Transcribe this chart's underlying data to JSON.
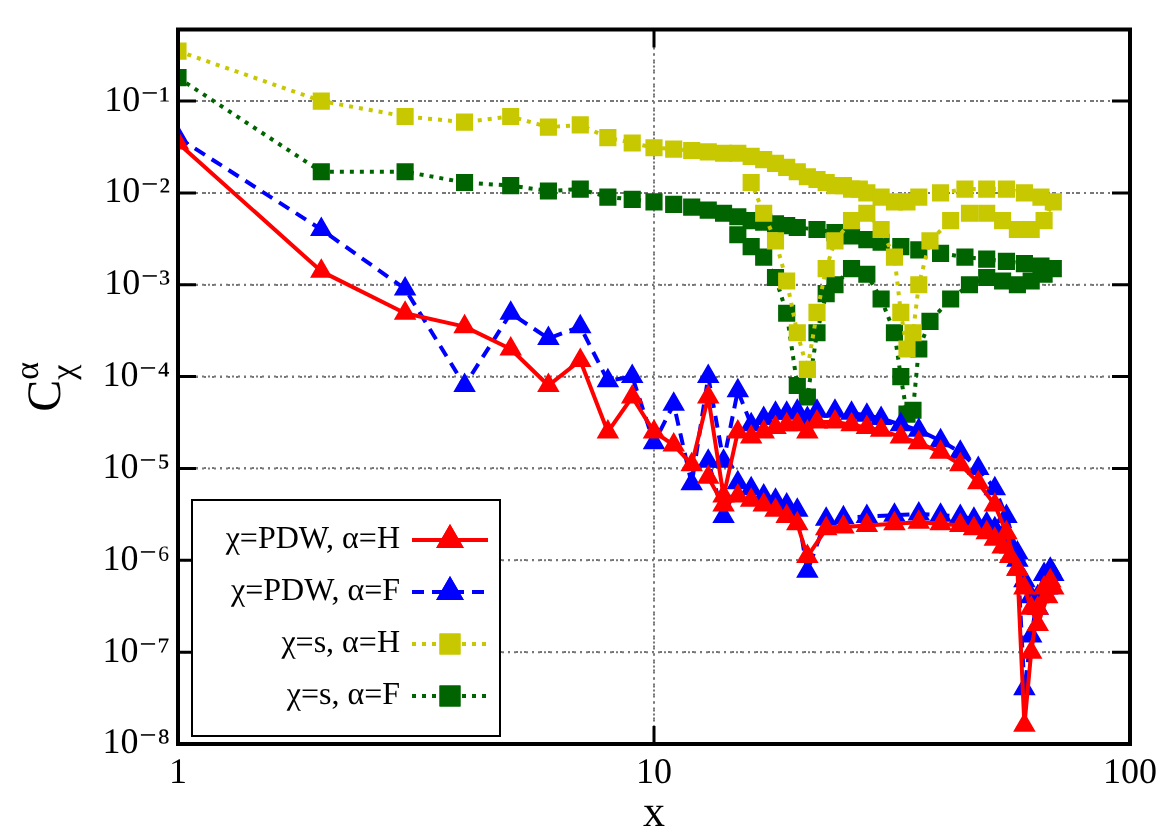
{
  "chart_data": {
    "type": "line",
    "xlabel": "x",
    "ylabel": "C$^{α}$$_{χ}$",
    "log": "xy",
    "grid": true,
    "legend": "bottom left",
    "xlim": [
      1,
      100
    ],
    "xticks": [
      1,
      10,
      100
    ],
    "ylim": [
      1e-08,
      0.6
    ],
    "yticks": [
      {
        "value": 1e-08,
        "label": "10⁻⁸"
      },
      {
        "value": 1e-07,
        "label": "10⁻⁷"
      },
      {
        "value": 1e-06,
        "label": "10⁻⁶"
      },
      {
        "value": 1e-05,
        "label": "10⁻⁵"
      },
      {
        "value": 0.0001,
        "label": "10⁻⁴"
      },
      {
        "value": 0.001,
        "label": "10⁻³"
      },
      {
        "value": 0.01,
        "label": "10⁻²"
      },
      {
        "value": 0.1,
        "label": "10⁻¹"
      }
    ],
    "series": [
      {
        "name": "χ=PDW, α=H",
        "color": "#ff0000",
        "marker": "triangle",
        "line_style": "solid",
        "x": [
          1,
          2,
          3,
          4,
          5,
          6,
          7,
          8,
          9,
          10,
          11,
          12,
          13,
          14,
          15,
          16,
          17,
          18,
          19,
          20,
          21,
          22,
          24,
          26,
          28,
          30,
          33,
          36,
          40,
          44,
          48,
          52,
          55,
          58,
          60,
          62,
          64,
          66,
          68,
          69,
          67,
          64,
          62,
          60,
          58,
          56,
          54,
          52,
          50,
          47,
          44,
          40,
          36,
          32,
          28,
          25,
          23,
          21,
          20,
          19,
          18,
          17,
          16,
          15,
          14,
          13
        ],
        "values": [
          0.035,
          0.0014,
          0.00049,
          0.00035,
          0.0002,
          8e-05,
          0.00015,
          2.5e-05,
          6e-05,
          2.5e-05,
          1.8e-05,
          1.1e-05,
          6e-05,
          5e-06,
          2.5e-05,
          2.2e-05,
          2.5e-05,
          2.8e-05,
          3e-05,
          3e-05,
          2.5e-05,
          3.2e-05,
          3.2e-05,
          3e-05,
          2.8e-05,
          2.6e-05,
          2.2e-05,
          1.9e-05,
          1.5e-05,
          1.1e-05,
          7e-06,
          4e-06,
          2e-06,
          8e-07,
          1.6e-08,
          1e-07,
          3e-07,
          5e-07,
          6e-07,
          5e-07,
          4e-07,
          2e-07,
          3e-07,
          5e-07,
          8e-07,
          1.1e-06,
          1.4e-06,
          1.7e-06,
          2e-06,
          2.2e-06,
          2.4e-06,
          2.5e-06,
          2.6e-06,
          2.5e-06,
          2.4e-06,
          2.3e-06,
          2.2e-06,
          1.1e-06,
          2.5e-06,
          3e-06,
          3.5e-06,
          4e-06,
          4.5e-06,
          5e-06,
          4e-06,
          8e-06
        ]
      },
      {
        "name": "χ=PDW, α=F",
        "color": "#0000ff",
        "marker": "triangle",
        "line_style": "dashed",
        "x": [
          1,
          2,
          3,
          4,
          5,
          6,
          7,
          8,
          9,
          10,
          11,
          12,
          13,
          14,
          15,
          16,
          17,
          18,
          19,
          20,
          21,
          22,
          24,
          26,
          28,
          30,
          33,
          36,
          40,
          44,
          48,
          52,
          55,
          58,
          60,
          62,
          64,
          66,
          68,
          69,
          67,
          64,
          62,
          60,
          58,
          56,
          54,
          52,
          50,
          47,
          44,
          40,
          36,
          32,
          28,
          25,
          23,
          21,
          20,
          19,
          18,
          17,
          16,
          15,
          14,
          13
        ],
        "values": [
          0.04,
          0.004,
          0.0009,
          8e-05,
          0.00049,
          0.00026,
          0.00035,
          9e-05,
          0.0001,
          1.9e-05,
          5e-05,
          6.8e-06,
          0.0001,
          1.2e-05,
          7e-05,
          3e-05,
          3.5e-05,
          4e-05,
          4e-05,
          4.2e-05,
          3.5e-05,
          4.2e-05,
          4.2e-05,
          4e-05,
          3.8e-05,
          3.5e-05,
          3e-05,
          2.6e-05,
          2e-05,
          1.5e-05,
          1e-05,
          6e-06,
          3e-06,
          1.2e-06,
          4e-08,
          1.5e-07,
          4e-07,
          7e-07,
          8e-07,
          7e-07,
          5e-07,
          3e-07,
          4e-07,
          6e-07,
          1e-06,
          1.4e-06,
          1.8e-06,
          2.2e-06,
          2.5e-06,
          2.8e-06,
          3e-06,
          3.1e-06,
          3.2e-06,
          3.1e-06,
          3e-06,
          2.9e-06,
          2.8e-06,
          7.6e-07,
          3.5e-06,
          4e-06,
          4.5e-06,
          5e-06,
          6e-06,
          7e-06,
          3e-06,
          1.2e-05
        ]
      },
      {
        "name": "χ=s, α=H",
        "color": "#c8c800",
        "marker": "square",
        "line_style": "dotted",
        "x": [
          1,
          2,
          3,
          4,
          5,
          6,
          7,
          8,
          9,
          10,
          11,
          12,
          13,
          14,
          15,
          16,
          17,
          18,
          19,
          20,
          21,
          22,
          23,
          24,
          25,
          26,
          27,
          28,
          30,
          32,
          34,
          36,
          40,
          45,
          50,
          55,
          60,
          65,
          69,
          66,
          62,
          58,
          54,
          50,
          46,
          42,
          38,
          36,
          35,
          34,
          33,
          32,
          30,
          28,
          26,
          24,
          23,
          22,
          21,
          20,
          19,
          18,
          17,
          16
        ],
        "values": [
          0.35,
          0.1,
          0.068,
          0.059,
          0.068,
          0.052,
          0.055,
          0.04,
          0.035,
          0.031,
          0.03,
          0.029,
          0.028,
          0.027,
          0.027,
          0.025,
          0.023,
          0.021,
          0.019,
          0.017,
          0.015,
          0.014,
          0.013,
          0.012,
          0.012,
          0.011,
          0.011,
          0.01,
          0.009,
          0.008,
          0.008,
          0.009,
          0.01,
          0.011,
          0.011,
          0.011,
          0.01,
          0.009,
          0.008,
          0.005,
          0.004,
          0.004,
          0.005,
          0.006,
          0.006,
          0.005,
          0.003,
          0.001,
          0.0003,
          0.0002,
          0.0005,
          0.002,
          0.004,
          0.006,
          0.005,
          0.003,
          0.0015,
          0.0005,
          0.00012,
          0.0003,
          0.0011,
          0.003,
          0.006,
          0.013
        ]
      },
      {
        "name": "χ=s, α=F",
        "color": "#006400",
        "marker": "square",
        "line_style": "dotted",
        "x": [
          1,
          2,
          3,
          4,
          5,
          6,
          7,
          8,
          9,
          10,
          11,
          12,
          13,
          14,
          15,
          16,
          17,
          18,
          19,
          20,
          22,
          24,
          26,
          28,
          30,
          33,
          36,
          40,
          45,
          50,
          55,
          60,
          65,
          69,
          66,
          62,
          58,
          54,
          50,
          46,
          42,
          38,
          36,
          35,
          34,
          33,
          32,
          30,
          28,
          26,
          24,
          23,
          22,
          21,
          20,
          19,
          18,
          17,
          16,
          15
        ],
        "values": [
          0.18,
          0.017,
          0.017,
          0.013,
          0.012,
          0.0105,
          0.011,
          0.009,
          0.0085,
          0.008,
          0.0075,
          0.007,
          0.0065,
          0.006,
          0.0055,
          0.005,
          0.0048,
          0.0046,
          0.0044,
          0.0042,
          0.004,
          0.0037,
          0.0034,
          0.0031,
          0.0029,
          0.0026,
          0.0024,
          0.0022,
          0.002,
          0.0019,
          0.0018,
          0.0017,
          0.0016,
          0.0015,
          0.0013,
          0.0011,
          0.001,
          0.0011,
          0.0012,
          0.001,
          0.0007,
          0.0004,
          0.0002,
          4.3e-05,
          3.9e-05,
          0.0001,
          0.0003,
          0.0007,
          0.0013,
          0.0015,
          0.001,
          0.0008,
          0.0003,
          6e-05,
          8e-05,
          0.00049,
          0.0012,
          0.002,
          0.0026,
          0.0035
        ]
      }
    ]
  }
}
